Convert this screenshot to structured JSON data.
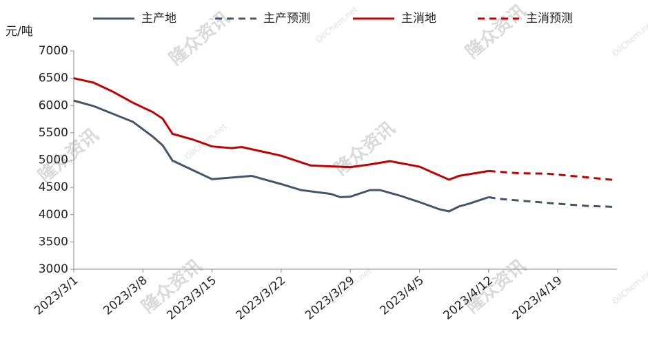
{
  "chart_data": {
    "type": "line",
    "y_label": "元/吨",
    "watermarks": [
      "隆众资讯",
      "OilChem.net"
    ],
    "xlim": [
      "2023/3/1",
      "2023/4/25"
    ],
    "xticks": [
      "2023/3/1",
      "2023/3/8",
      "2023/3/15",
      "2023/3/22",
      "2023/3/29",
      "2023/4/5",
      "2023/4/12",
      "2023/4/19"
    ],
    "ylim": [
      3000,
      7000
    ],
    "yticks": [
      3000,
      3500,
      4000,
      4500,
      5000,
      5500,
      6000,
      6500,
      7000
    ],
    "series": [
      {
        "name": "主产地",
        "color": "#44546a",
        "dashed": false,
        "x": [
          "2023/3/1",
          "2023/3/3",
          "2023/3/7",
          "2023/3/9",
          "2023/3/10",
          "2023/3/11",
          "2023/3/15",
          "2023/3/17",
          "2023/3/19",
          "2023/3/22",
          "2023/3/24",
          "2023/3/27",
          "2023/3/28",
          "2023/3/29",
          "2023/3/31",
          "2023/4/1",
          "2023/4/3",
          "2023/4/5",
          "2023/4/7",
          "2023/4/8",
          "2023/4/9",
          "2023/4/10",
          "2023/4/11",
          "2023/4/12"
        ],
        "values": [
          6090,
          5990,
          5700,
          5430,
          5270,
          4990,
          4650,
          4680,
          4710,
          4560,
          4450,
          4380,
          4320,
          4330,
          4450,
          4450,
          4350,
          4230,
          4100,
          4060,
          4150,
          4200,
          4260,
          4320
        ]
      },
      {
        "name": "主产预测",
        "color": "#44546a",
        "dashed": true,
        "x": [
          "2023/4/12",
          "2023/4/13",
          "2023/4/19",
          "2023/4/22",
          "2023/4/25"
        ],
        "values": [
          4320,
          4290,
          4200,
          4160,
          4140
        ]
      },
      {
        "name": "主消地",
        "color": "#c00000",
        "dashed": false,
        "x": [
          "2023/3/1",
          "2023/3/3",
          "2023/3/5",
          "2023/3/7",
          "2023/3/9",
          "2023/3/10",
          "2023/3/11",
          "2023/3/13",
          "2023/3/15",
          "2023/3/17",
          "2023/3/18",
          "2023/3/22",
          "2023/3/25",
          "2023/3/29",
          "2023/3/31",
          "2023/4/2",
          "2023/4/5",
          "2023/4/7",
          "2023/4/8",
          "2023/4/9",
          "2023/4/12"
        ],
        "values": [
          6500,
          6420,
          6250,
          6050,
          5880,
          5760,
          5480,
          5380,
          5250,
          5220,
          5240,
          5080,
          4900,
          4870,
          4920,
          4980,
          4880,
          4720,
          4640,
          4710,
          4800
        ]
      },
      {
        "name": "主消预测",
        "color": "#c00000",
        "dashed": true,
        "x": [
          "2023/4/12",
          "2023/4/15",
          "2023/4/18",
          "2023/4/21",
          "2023/4/25"
        ],
        "values": [
          4800,
          4760,
          4750,
          4700,
          4630
        ]
      }
    ]
  }
}
